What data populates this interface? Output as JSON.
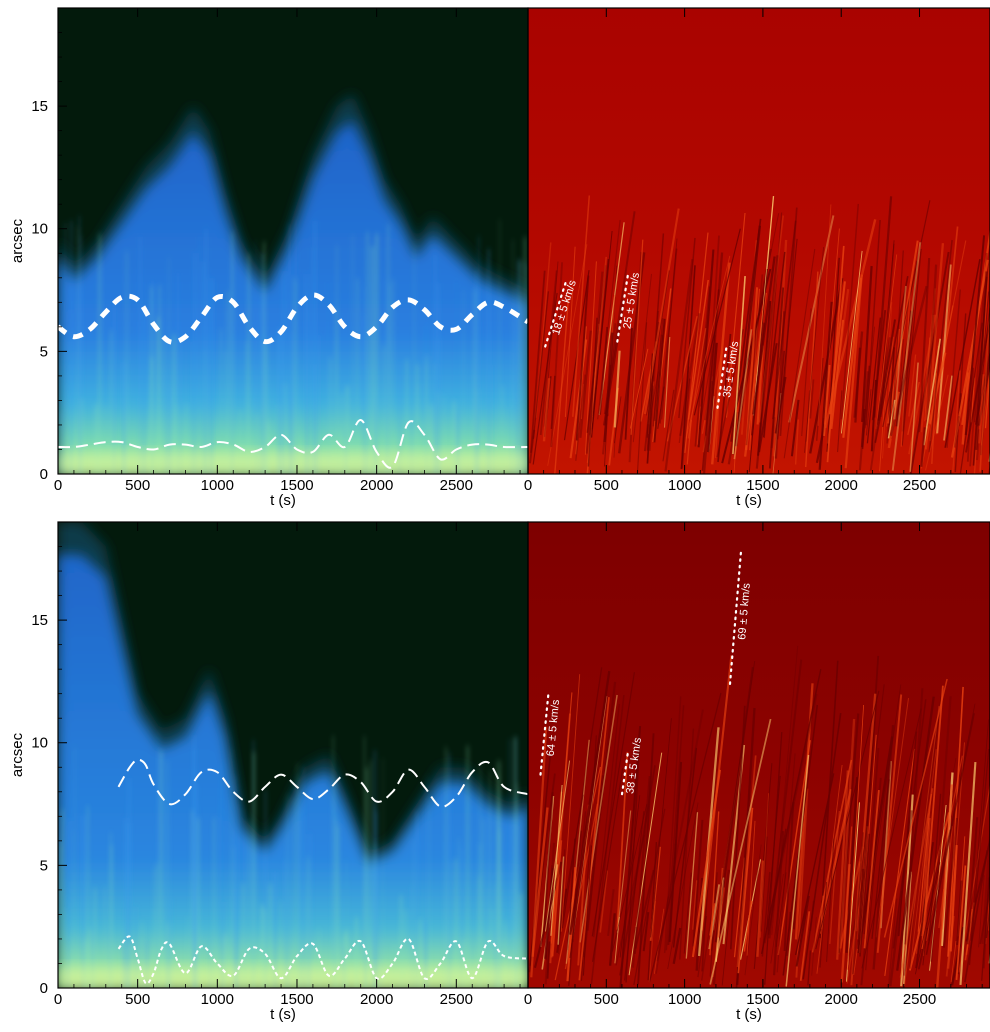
{
  "figure": {
    "rows": [
      {
        "ylabel": "arcsec",
        "xlabel_left": "t (s)",
        "xlabel_right": "t (s)",
        "left_x_ticks": [
          "0",
          "500",
          "1000",
          "1500",
          "2000",
          "2500"
        ],
        "right_x_ticks": [
          "0",
          "500",
          "1000",
          "1500",
          "2000",
          "2500"
        ],
        "y_ticks": [
          "0",
          "5",
          "10",
          "15"
        ]
      },
      {
        "ylabel": "arcsec",
        "xlabel_left": "t (s)",
        "xlabel_right": "t (s)",
        "left_x_ticks": [
          "0",
          "500",
          "1000",
          "1500",
          "2000",
          "2500"
        ],
        "right_x_ticks": [
          "0",
          "500",
          "1000",
          "1500",
          "2000",
          "2500"
        ],
        "y_ticks": [
          "0",
          "5",
          "10",
          "15"
        ]
      }
    ]
  },
  "chart_data": [
    {
      "type": "heatmap",
      "panel": "top-left",
      "xlabel": "t (s)",
      "ylabel": "arcsec",
      "xlim": [
        0,
        2950
      ],
      "ylim": [
        0,
        19
      ],
      "colormap": [
        "#000000",
        "#0a2a14",
        "#1a5fb0",
        "#2f8fe8",
        "#5fd4a0",
        "#d8f7a0"
      ],
      "series": [
        {
          "style": "thick-dashed",
          "x": [
            0,
            100,
            200,
            300,
            400,
            500,
            600,
            700,
            800,
            900,
            1000,
            1100,
            1200,
            1300,
            1400,
            1500,
            1600,
            1700,
            1800,
            1900,
            2000,
            2100,
            2200,
            2300,
            2400,
            2500,
            2600,
            2700,
            2800,
            2950
          ],
          "y": [
            6.0,
            5.6,
            5.9,
            6.6,
            7.2,
            7.1,
            6.1,
            5.4,
            5.6,
            6.4,
            7.2,
            7.0,
            6.0,
            5.4,
            5.8,
            6.8,
            7.3,
            6.9,
            6.0,
            5.6,
            6.0,
            6.8,
            7.1,
            6.7,
            6.0,
            5.9,
            6.5,
            7.0,
            6.8,
            6.2
          ]
        },
        {
          "style": "long-dashed",
          "x": [
            0,
            100,
            200,
            300,
            400,
            500,
            600,
            700,
            800,
            900,
            1000,
            1100,
            1200,
            1300,
            1400,
            1500,
            1600,
            1700,
            1800,
            1900,
            2000,
            2100,
            2200,
            2300,
            2400,
            2500,
            2600,
            2700,
            2800,
            2950
          ],
          "y": [
            1.1,
            1.1,
            1.2,
            1.3,
            1.3,
            1.1,
            1.0,
            1.2,
            1.2,
            1.1,
            1.3,
            1.2,
            0.9,
            1.1,
            1.6,
            1.0,
            0.9,
            1.6,
            1.1,
            2.2,
            0.9,
            0.3,
            2.1,
            1.6,
            0.6,
            1.0,
            1.2,
            1.2,
            1.1,
            1.1
          ]
        }
      ]
    },
    {
      "type": "heatmap",
      "panel": "top-right",
      "xlabel": "t (s)",
      "xlim": [
        0,
        2950
      ],
      "ylim": [
        0,
        19
      ],
      "colormap": [
        "#7a0000",
        "#b00000",
        "#e83a00",
        "#ffb040",
        "#fff4b0"
      ],
      "annotations": [
        {
          "text": "18 ± 5 km/s",
          "x0": 110,
          "y0": 5.2,
          "x1": 240,
          "y1": 7.8
        },
        {
          "text": "25 ± 5 km/s",
          "x0": 570,
          "y0": 5.4,
          "x1": 640,
          "y1": 8.2
        },
        {
          "text": "35 ± 5 km/s",
          "x0": 1210,
          "y0": 2.7,
          "x1": 1270,
          "y1": 5.3
        }
      ]
    },
    {
      "type": "heatmap",
      "panel": "bottom-left",
      "xlabel": "t (s)",
      "ylabel": "arcsec",
      "xlim": [
        0,
        2950
      ],
      "ylim": [
        0,
        19
      ],
      "colormap": [
        "#000000",
        "#0a2a14",
        "#1a5fb0",
        "#2f8fe8",
        "#5fd4a0",
        "#d8f7a0"
      ],
      "series": [
        {
          "style": "long-dashed",
          "x": [
            380,
            450,
            500,
            550,
            600,
            700,
            800,
            900,
            1000,
            1100,
            1200,
            1300,
            1400,
            1500,
            1600,
            1700,
            1800,
            1900,
            2000,
            2100,
            2200,
            2300,
            2400,
            2500,
            2600,
            2700,
            2800,
            2950
          ],
          "y": [
            8.2,
            9.0,
            9.3,
            9.1,
            8.3,
            7.5,
            7.9,
            8.8,
            8.8,
            8.0,
            7.6,
            8.2,
            8.7,
            8.2,
            7.7,
            8.1,
            8.7,
            8.4,
            7.6,
            8.0,
            8.9,
            8.2,
            7.4,
            7.8,
            8.8,
            9.2,
            8.2,
            7.9
          ]
        },
        {
          "style": "short-dashed",
          "x": [
            380,
            450,
            500,
            550,
            600,
            650,
            700,
            800,
            900,
            1000,
            1100,
            1200,
            1300,
            1400,
            1500,
            1600,
            1700,
            1800,
            1900,
            2000,
            2100,
            2200,
            2300,
            2400,
            2500,
            2600,
            2700,
            2800,
            2950
          ],
          "y": [
            1.6,
            2.1,
            1.2,
            0.2,
            0.6,
            1.6,
            1.8,
            0.6,
            1.7,
            1.0,
            0.5,
            1.6,
            1.4,
            0.4,
            1.3,
            1.8,
            0.5,
            1.2,
            1.9,
            0.4,
            1.0,
            2.0,
            0.4,
            1.0,
            1.9,
            0.4,
            1.9,
            1.3,
            1.2
          ]
        }
      ]
    },
    {
      "type": "heatmap",
      "panel": "bottom-right",
      "xlabel": "t (s)",
      "xlim": [
        0,
        2950
      ],
      "ylim": [
        0,
        19
      ],
      "colormap": [
        "#5a0000",
        "#8a0000",
        "#c22000",
        "#ff8020",
        "#fff0a0"
      ],
      "annotations": [
        {
          "text": "64 ± 5 km/s",
          "x0": 80,
          "y0": 8.7,
          "x1": 130,
          "y1": 12.0
        },
        {
          "text": "38 ± 5 km/s",
          "x0": 600,
          "y0": 7.9,
          "x1": 640,
          "y1": 9.7
        },
        {
          "text": "69 ± 5 km/s",
          "x0": 1290,
          "y0": 12.4,
          "x1": 1360,
          "y1": 17.8
        }
      ]
    }
  ]
}
